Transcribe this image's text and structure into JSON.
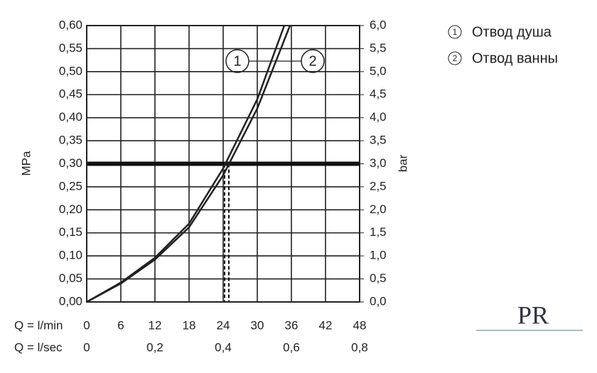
{
  "chart_data": {
    "type": "line",
    "x_label": "Q = l/min",
    "x2_label": "Q = l/sec",
    "y_label": "MPa",
    "y2_label": "bar",
    "xlim": [
      0,
      48
    ],
    "xticks": [
      0,
      6,
      12,
      18,
      24,
      30,
      36,
      42,
      48
    ],
    "x2lim": [
      0,
      0.8
    ],
    "x2ticks": [
      {
        "value": 0,
        "label": "0"
      },
      {
        "value": 0.2,
        "label": "0,2"
      },
      {
        "value": 0.4,
        "label": "0,4"
      },
      {
        "value": 0.6,
        "label": "0,6"
      },
      {
        "value": 0.8,
        "label": "0,8"
      }
    ],
    "ylim": [
      0,
      0.6
    ],
    "yticks": [
      {
        "value": 0,
        "label": "0,00"
      },
      {
        "value": 0.05,
        "label": "0,05"
      },
      {
        "value": 0.1,
        "label": "0,10"
      },
      {
        "value": 0.15,
        "label": "0,15"
      },
      {
        "value": 0.2,
        "label": "0,20"
      },
      {
        "value": 0.25,
        "label": "0,25"
      },
      {
        "value": 0.3,
        "label": "0,30"
      },
      {
        "value": 0.35,
        "label": "0,35"
      },
      {
        "value": 0.4,
        "label": "0,40"
      },
      {
        "value": 0.45,
        "label": "0,45"
      },
      {
        "value": 0.5,
        "label": "0,50"
      },
      {
        "value": 0.55,
        "label": "0,55"
      },
      {
        "value": 0.6,
        "label": "0,60"
      }
    ],
    "y2lim": [
      0,
      6
    ],
    "y2ticks": [
      {
        "value": 0,
        "label": "0,0"
      },
      {
        "value": 0.5,
        "label": "0,5"
      },
      {
        "value": 1,
        "label": "1,0"
      },
      {
        "value": 1.5,
        "label": "1,5"
      },
      {
        "value": 2,
        "label": "2,0"
      },
      {
        "value": 2.5,
        "label": "2,5"
      },
      {
        "value": 3,
        "label": "3,0"
      },
      {
        "value": 3.5,
        "label": "3,5"
      },
      {
        "value": 4,
        "label": "4,0"
      },
      {
        "value": 4.5,
        "label": "4,5"
      },
      {
        "value": 5,
        "label": "5,0"
      },
      {
        "value": 5.5,
        "label": "5,5"
      },
      {
        "value": 6,
        "label": "6,0"
      }
    ],
    "grid": true,
    "reference_line": 0.3,
    "drop_lines": [
      24.25,
      25
    ],
    "series": [
      {
        "name": "Отвод душа",
        "label": "1",
        "color": "#222222",
        "x": [
          0,
          6,
          12,
          18,
          24,
          30,
          34.75
        ],
        "values": [
          0,
          0.042,
          0.096,
          0.17,
          0.29,
          0.44,
          0.6
        ]
      },
      {
        "name": "Отвод ванны",
        "label": "2",
        "color": "#222222",
        "x": [
          0,
          6,
          12,
          18,
          24,
          30,
          35.75
        ],
        "values": [
          0,
          0.04,
          0.092,
          0.162,
          0.275,
          0.42,
          0.6
        ]
      }
    ],
    "logo": "PR"
  }
}
